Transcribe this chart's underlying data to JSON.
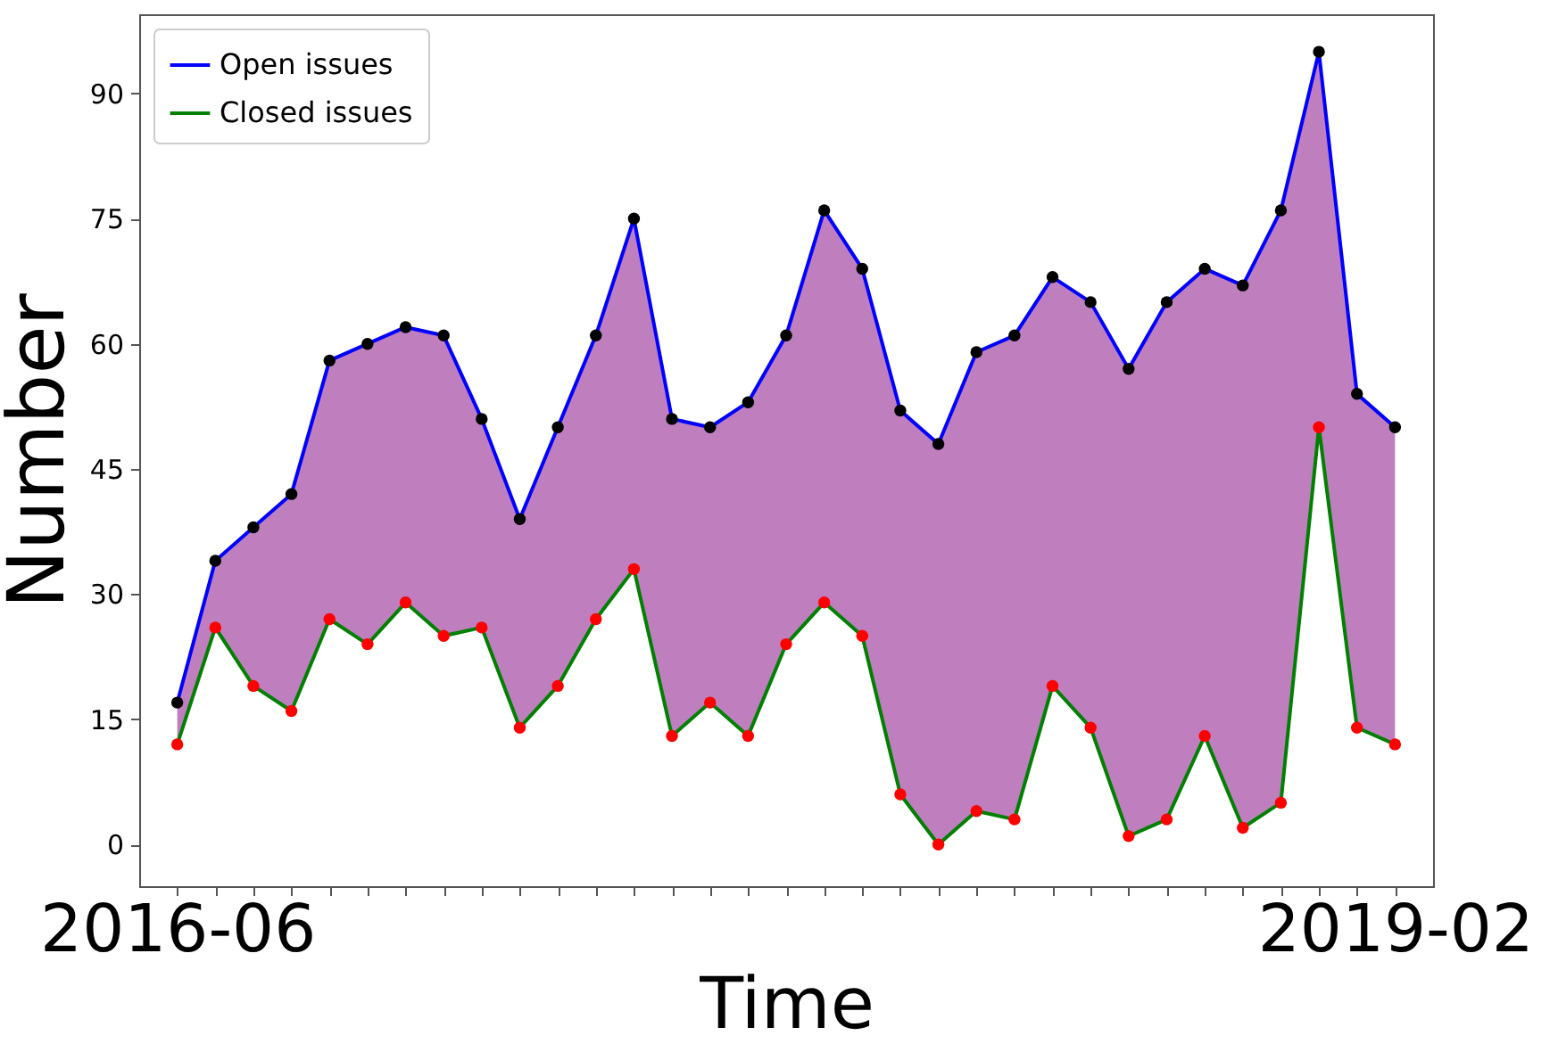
{
  "chart_data": {
    "type": "line",
    "xlabel": "Time",
    "ylabel": "Number",
    "categories": [
      "2016-06",
      null,
      null,
      null,
      null,
      null,
      null,
      null,
      null,
      null,
      null,
      null,
      null,
      null,
      null,
      null,
      null,
      null,
      null,
      null,
      null,
      null,
      null,
      null,
      null,
      null,
      null,
      null,
      null,
      null,
      null,
      null,
      "2019-02"
    ],
    "series": [
      {
        "name": "Open issues",
        "color": "#0000ff",
        "values": [
          17,
          34,
          38,
          42,
          58,
          60,
          62,
          61,
          51,
          39,
          50,
          61,
          75,
          51,
          50,
          53,
          61,
          76,
          69,
          52,
          48,
          59,
          61,
          68,
          65,
          57,
          65,
          69,
          67,
          76,
          95,
          54,
          50
        ],
        "lower": [
          12,
          26,
          19,
          16,
          27,
          24,
          29,
          25,
          26,
          14,
          19,
          27,
          33,
          13,
          17,
          13,
          24,
          29,
          25,
          6,
          0,
          4,
          3,
          19,
          14,
          1,
          3,
          13,
          2,
          5,
          50,
          14,
          12
        ],
        "upper": [
          17,
          34,
          38,
          42,
          58,
          60,
          62,
          61,
          51,
          39,
          50,
          61,
          75,
          51,
          50,
          53,
          61,
          76,
          69,
          52,
          48,
          59,
          61,
          68,
          65,
          57,
          65,
          69,
          67,
          76,
          95,
          54,
          50
        ]
      },
      {
        "name": "Closed issues",
        "color": "#008000",
        "values": [
          12,
          26,
          19,
          16,
          27,
          24,
          29,
          25,
          26,
          14,
          19,
          27,
          33,
          13,
          17,
          13,
          24,
          29,
          25,
          6,
          0,
          4,
          3,
          19,
          14,
          1,
          3,
          13,
          2,
          5,
          50,
          14,
          12
        ]
      }
    ],
    "ylim": [
      -5,
      99.5
    ],
    "yticks": [
      0,
      15,
      30,
      45,
      60,
      75,
      90
    ],
    "grid": false,
    "legend": "top left",
    "marker": "circle",
    "line_style": "solid"
  }
}
